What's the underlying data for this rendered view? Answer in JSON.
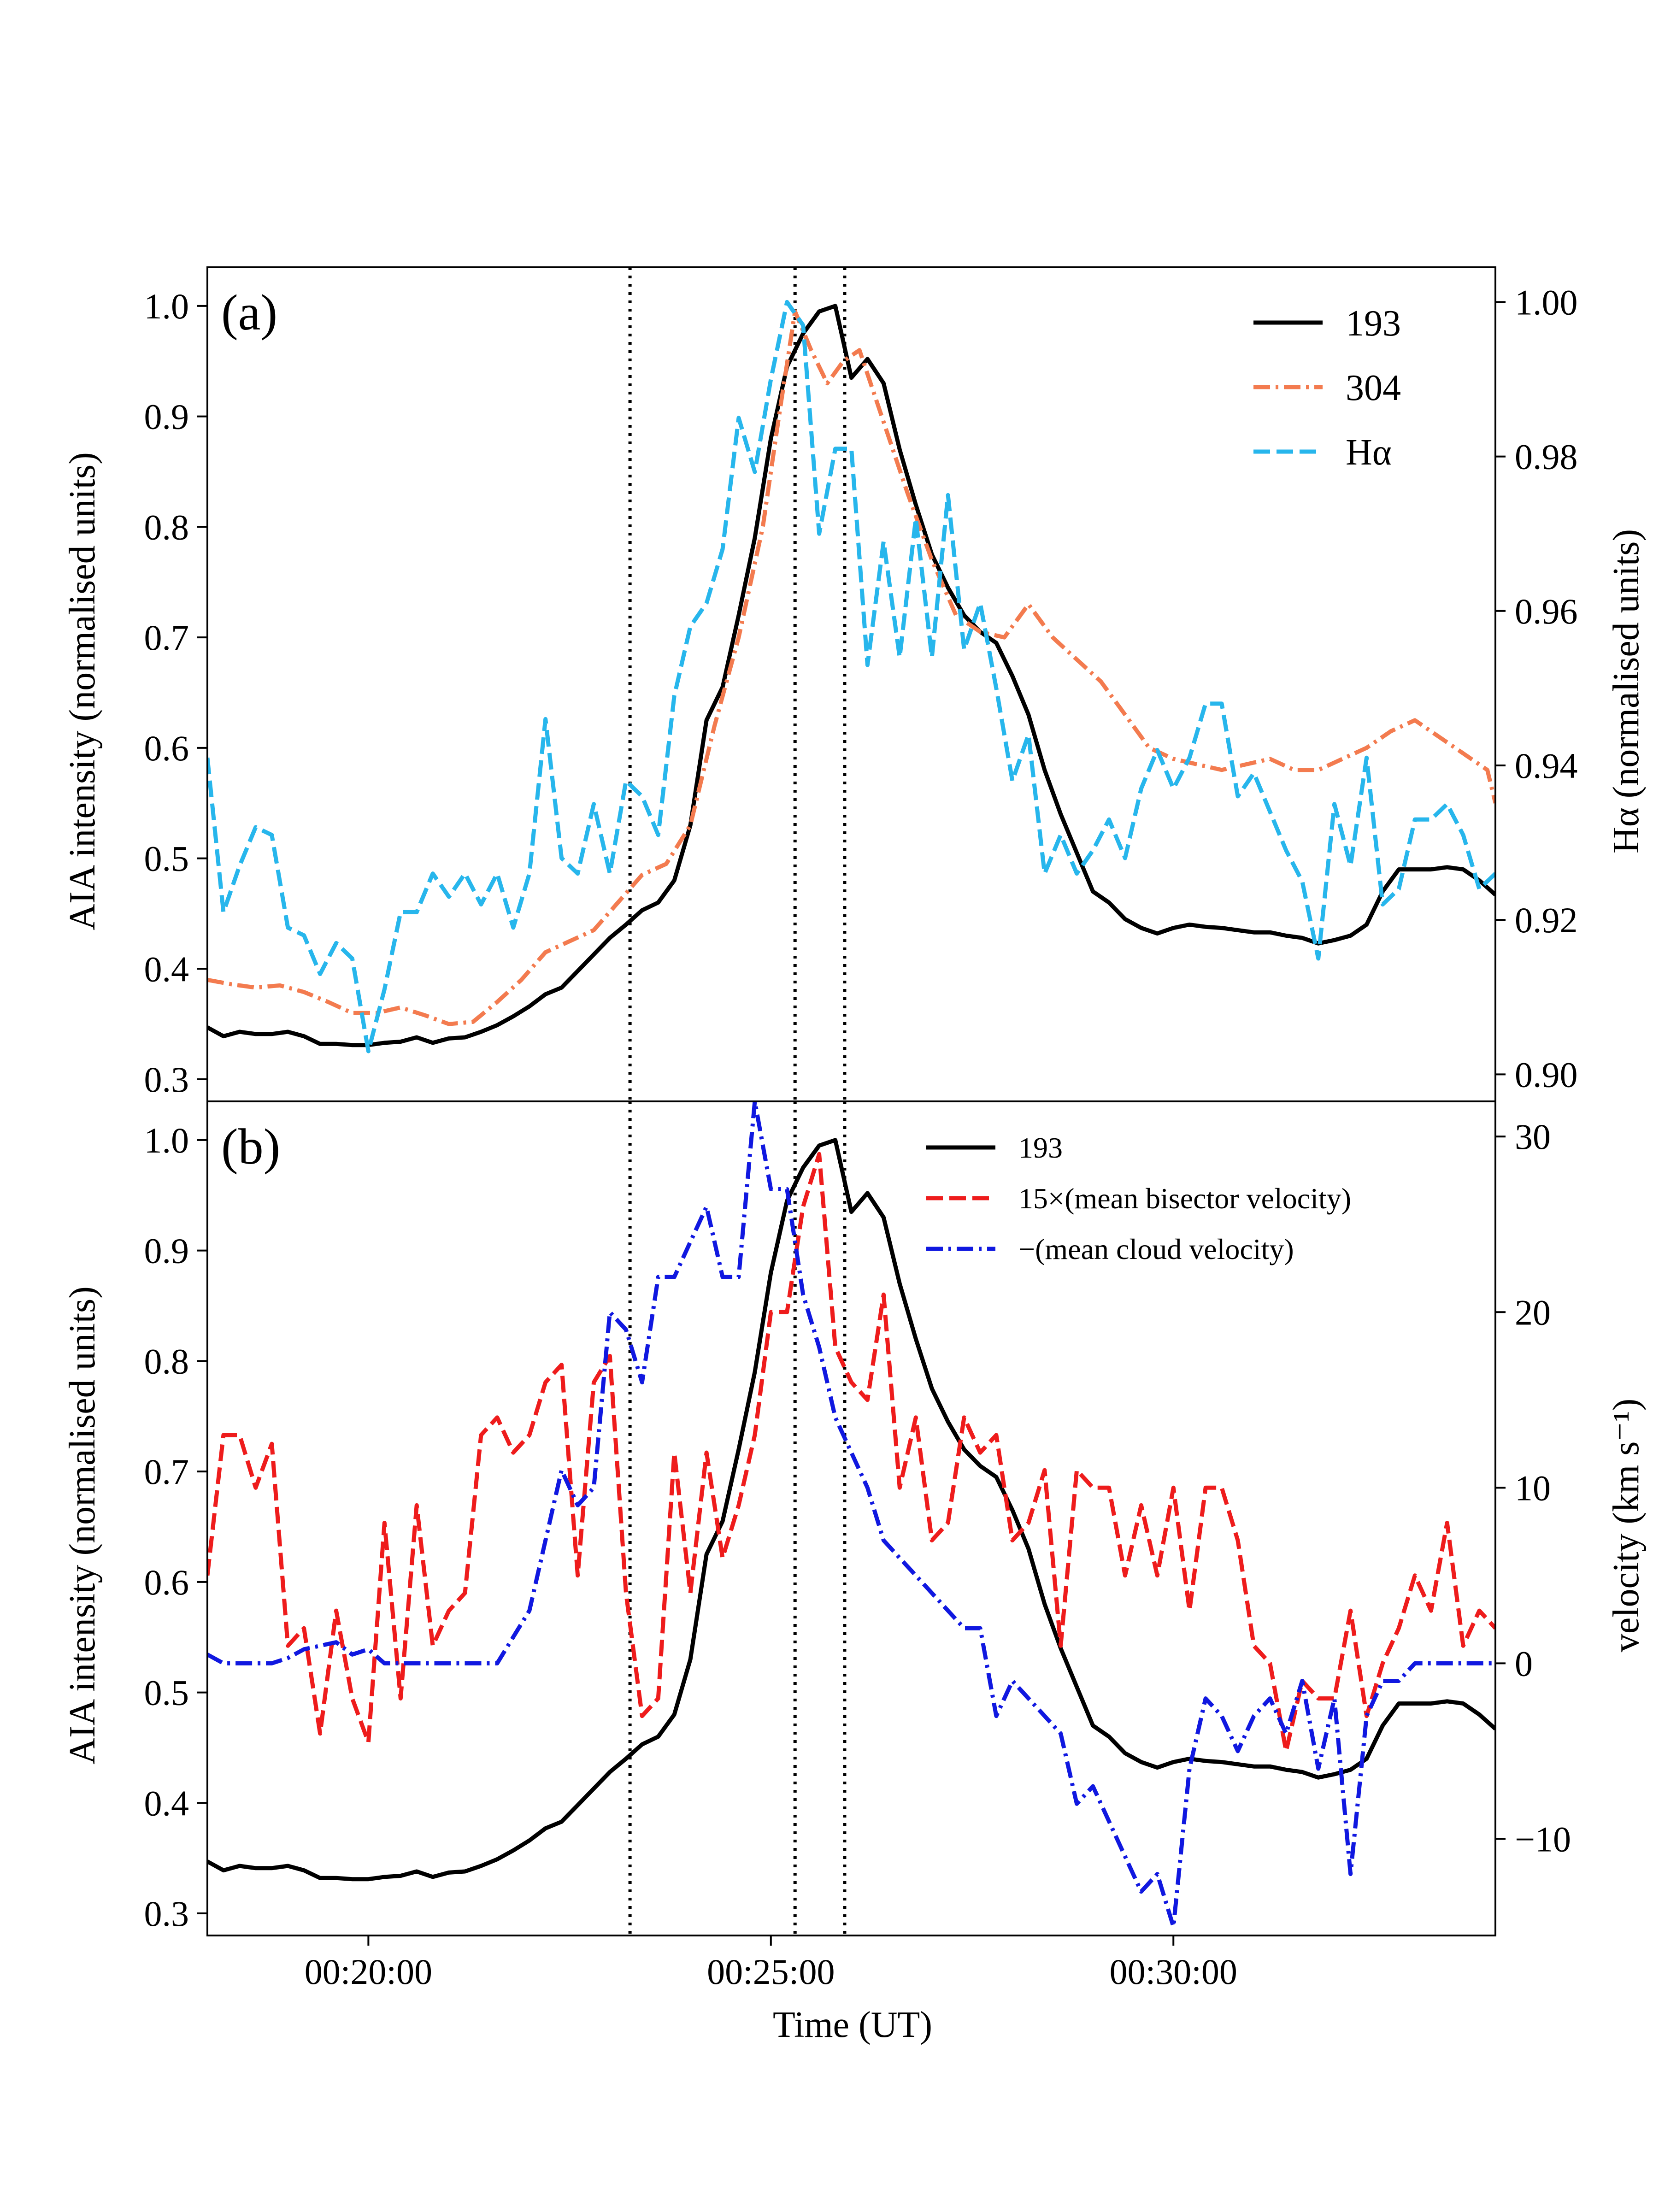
{
  "chart_data": [
    {
      "panel": "(a)",
      "type": "line",
      "xlabel": "",
      "ylabel": "AIA intensity (normalised units)",
      "y2label": "Hα (normalised units)",
      "xlim": [
        "00:18:00",
        "00:34:00"
      ],
      "ylim": [
        0.28,
        1.035
      ],
      "y2lim": [
        0.8965,
        1.0045
      ],
      "yticks": [
        "0.3",
        "0.4",
        "0.5",
        "0.6",
        "0.7",
        "0.8",
        "0.9",
        "1.0"
      ],
      "y2ticks": [
        "0.90",
        "0.92",
        "0.94",
        "0.96",
        "0.98",
        "1.00"
      ],
      "vlines": [
        "00:23:15",
        "00:25:18",
        "00:25:55"
      ],
      "legend": "top-right",
      "series": [
        {
          "name": "193",
          "axis": "left",
          "color": "#000000",
          "style": "solid",
          "x": [
            "00:18:00",
            "00:18:12",
            "00:18:24",
            "00:18:36",
            "00:18:48",
            "00:19:00",
            "00:19:12",
            "00:19:24",
            "00:19:36",
            "00:19:48",
            "00:20:00",
            "00:20:12",
            "00:20:24",
            "00:20:36",
            "00:20:48",
            "00:21:00",
            "00:21:12",
            "00:21:24",
            "00:21:36",
            "00:21:48",
            "00:22:00",
            "00:22:12",
            "00:22:24",
            "00:22:36",
            "00:22:48",
            "00:23:00",
            "00:23:12",
            "00:23:24",
            "00:23:36",
            "00:23:48",
            "00:24:00",
            "00:24:12",
            "00:24:24",
            "00:24:36",
            "00:24:48",
            "00:25:00",
            "00:25:12",
            "00:25:24",
            "00:25:36",
            "00:25:48",
            "00:26:00",
            "00:26:12",
            "00:26:24",
            "00:26:36",
            "00:26:48",
            "00:27:00",
            "00:27:12",
            "00:27:24",
            "00:27:36",
            "00:27:48",
            "00:28:00",
            "00:28:12",
            "00:28:24",
            "00:28:36",
            "00:28:48",
            "00:29:00",
            "00:29:12",
            "00:29:24",
            "00:29:36",
            "00:29:48",
            "00:30:00",
            "00:30:12",
            "00:30:24",
            "00:30:36",
            "00:30:48",
            "00:31:00",
            "00:31:12",
            "00:31:24",
            "00:31:36",
            "00:31:48",
            "00:32:00",
            "00:32:12",
            "00:32:24",
            "00:32:36",
            "00:32:48",
            "00:33:00",
            "00:33:12",
            "00:33:24",
            "00:33:36",
            "00:33:48",
            "00:34:00"
          ],
          "y": [
            0.347,
            0.339,
            0.343,
            0.341,
            0.341,
            0.343,
            0.339,
            0.332,
            0.332,
            0.331,
            0.331,
            0.333,
            0.334,
            0.338,
            0.333,
            0.337,
            0.338,
            0.343,
            0.349,
            0.357,
            0.366,
            0.377,
            0.383,
            0.398,
            0.413,
            0.428,
            0.44,
            0.453,
            0.46,
            0.48,
            0.53,
            0.625,
            0.655,
            0.72,
            0.79,
            0.88,
            0.945,
            0.975,
            0.995,
            1.0,
            0.935,
            0.952,
            0.93,
            0.87,
            0.82,
            0.775,
            0.745,
            0.72,
            0.705,
            0.695,
            0.665,
            0.63,
            0.58,
            0.54,
            0.505,
            0.47,
            0.46,
            0.445,
            0.437,
            0.432,
            0.437,
            0.44,
            0.438,
            0.437,
            0.435,
            0.433,
            0.433,
            0.43,
            0.428,
            0.423,
            0.426,
            0.43,
            0.44,
            0.47,
            0.49,
            0.49,
            0.49,
            0.492,
            0.49,
            0.48,
            0.467
          ]
        },
        {
          "name": "304",
          "axis": "left",
          "color": "#f37b4f",
          "style": "dashdot",
          "x": [
            "00:18:00",
            "00:18:18",
            "00:18:36",
            "00:18:54",
            "00:19:12",
            "00:19:30",
            "00:19:48",
            "00:20:06",
            "00:20:24",
            "00:20:42",
            "00:21:00",
            "00:21:18",
            "00:21:36",
            "00:21:54",
            "00:22:12",
            "00:22:30",
            "00:22:48",
            "00:23:06",
            "00:23:24",
            "00:23:42",
            "00:24:00",
            "00:24:18",
            "00:24:36",
            "00:24:54",
            "00:25:06",
            "00:25:18",
            "00:25:30",
            "00:25:42",
            "00:25:54",
            "00:26:06",
            "00:26:24",
            "00:26:42",
            "00:27:00",
            "00:27:18",
            "00:27:36",
            "00:27:54",
            "00:28:12",
            "00:28:30",
            "00:28:48",
            "00:29:06",
            "00:29:24",
            "00:29:42",
            "00:30:00",
            "00:30:18",
            "00:30:36",
            "00:30:54",
            "00:31:12",
            "00:31:30",
            "00:31:48",
            "00:32:06",
            "00:32:24",
            "00:32:42",
            "00:33:00",
            "00:33:18",
            "00:33:36",
            "00:33:54",
            "00:34:00"
          ],
          "y": [
            0.39,
            0.386,
            0.383,
            0.385,
            0.379,
            0.37,
            0.36,
            0.36,
            0.365,
            0.358,
            0.35,
            0.352,
            0.37,
            0.39,
            0.415,
            0.425,
            0.435,
            0.46,
            0.485,
            0.495,
            0.53,
            0.62,
            0.7,
            0.8,
            0.9,
            0.995,
            0.96,
            0.93,
            0.95,
            0.96,
            0.895,
            0.83,
            0.77,
            0.72,
            0.705,
            0.7,
            0.73,
            0.7,
            0.68,
            0.66,
            0.63,
            0.6,
            0.59,
            0.585,
            0.58,
            0.585,
            0.59,
            0.58,
            0.58,
            0.59,
            0.6,
            0.615,
            0.625,
            0.61,
            0.595,
            0.58,
            0.55
          ]
        },
        {
          "name": "Hα",
          "axis": "right",
          "color": "#27b6ec",
          "style": "dashed",
          "x": [
            "00:18:00",
            "00:18:12",
            "00:18:24",
            "00:18:36",
            "00:18:48",
            "00:19:00",
            "00:19:12",
            "00:19:24",
            "00:19:36",
            "00:19:48",
            "00:20:00",
            "00:20:12",
            "00:20:24",
            "00:20:36",
            "00:20:48",
            "00:21:00",
            "00:21:12",
            "00:21:24",
            "00:21:36",
            "00:21:48",
            "00:22:00",
            "00:22:12",
            "00:22:24",
            "00:22:36",
            "00:22:48",
            "00:23:00",
            "00:23:12",
            "00:23:24",
            "00:23:36",
            "00:23:48",
            "00:24:00",
            "00:24:12",
            "00:24:24",
            "00:24:36",
            "00:24:48",
            "00:25:00",
            "00:25:12",
            "00:25:24",
            "00:25:36",
            "00:25:48",
            "00:26:00",
            "00:26:12",
            "00:26:24",
            "00:26:36",
            "00:26:48",
            "00:27:00",
            "00:27:12",
            "00:27:24",
            "00:27:36",
            "00:27:48",
            "00:28:00",
            "00:28:12",
            "00:28:24",
            "00:28:36",
            "00:28:48",
            "00:29:00",
            "00:29:12",
            "00:29:24",
            "00:29:36",
            "00:29:48",
            "00:30:00",
            "00:30:12",
            "00:30:24",
            "00:30:36",
            "00:30:48",
            "00:31:00",
            "00:31:12",
            "00:31:24",
            "00:31:36",
            "00:31:48",
            "00:32:00",
            "00:32:12",
            "00:32:24",
            "00:32:36",
            "00:32:48",
            "00:33:00",
            "00:33:12",
            "00:33:24",
            "00:33:36",
            "00:33:48",
            "00:34:00"
          ],
          "y": [
            0.941,
            0.921,
            0.927,
            0.932,
            0.931,
            0.919,
            0.918,
            0.913,
            0.917,
            0.915,
            0.903,
            0.911,
            0.921,
            0.921,
            0.926,
            0.923,
            0.926,
            0.922,
            0.926,
            0.919,
            0.926,
            0.946,
            0.928,
            0.926,
            0.935,
            0.926,
            0.938,
            0.936,
            0.931,
            0.949,
            0.958,
            0.961,
            0.968,
            0.985,
            0.978,
            0.99,
            1.0,
            0.997,
            0.97,
            0.981,
            0.981,
            0.953,
            0.969,
            0.954,
            0.972,
            0.954,
            0.975,
            0.955,
            0.961,
            0.95,
            0.938,
            0.944,
            0.926,
            0.931,
            0.926,
            0.929,
            0.933,
            0.928,
            0.937,
            0.942,
            0.937,
            0.941,
            0.948,
            0.948,
            0.936,
            0.939,
            0.934,
            0.929,
            0.925,
            0.915,
            0.935,
            0.927,
            0.941,
            0.922,
            0.924,
            0.933,
            0.933,
            0.935,
            0.931,
            0.924,
            0.926
          ]
        }
      ]
    },
    {
      "panel": "(b)",
      "type": "line",
      "xlabel": "Time (UT)",
      "ylabel": "AIA intensity (normalised units)",
      "y2label": "velocity (km s⁻¹)",
      "xlim": [
        "00:18:00",
        "00:34:00"
      ],
      "xticks": [
        "00:20:00",
        "00:25:00",
        "00:30:00"
      ],
      "ylim": [
        0.28,
        1.035
      ],
      "y2lim": [
        -15.5,
        32
      ],
      "yticks": [
        "0.3",
        "0.4",
        "0.5",
        "0.6",
        "0.7",
        "0.8",
        "0.9",
        "1.0"
      ],
      "y2ticks": [
        "−10",
        "0",
        "10",
        "20",
        "30"
      ],
      "vlines": [
        "00:23:15",
        "00:25:18",
        "00:25:55"
      ],
      "legend": "top-right",
      "series": [
        {
          "name": "193",
          "axis": "left",
          "color": "#000000",
          "style": "solid",
          "same_as": "panel (a) 193"
        },
        {
          "name": "15×(mean bisector velocity)",
          "axis": "right",
          "color": "#ee1c1c",
          "style": "dashed",
          "x": [
            "00:18:00",
            "00:18:12",
            "00:18:24",
            "00:18:36",
            "00:18:48",
            "00:19:00",
            "00:19:12",
            "00:19:24",
            "00:19:36",
            "00:19:48",
            "00:20:00",
            "00:20:12",
            "00:20:24",
            "00:20:36",
            "00:20:48",
            "00:21:00",
            "00:21:12",
            "00:21:24",
            "00:21:36",
            "00:21:48",
            "00:22:00",
            "00:22:12",
            "00:22:24",
            "00:22:36",
            "00:22:48",
            "00:23:00",
            "00:23:12",
            "00:23:24",
            "00:23:36",
            "00:23:48",
            "00:24:00",
            "00:24:12",
            "00:24:24",
            "00:24:36",
            "00:24:48",
            "00:25:00",
            "00:25:12",
            "00:25:24",
            "00:25:36",
            "00:25:48",
            "00:26:00",
            "00:26:12",
            "00:26:24",
            "00:26:36",
            "00:26:48",
            "00:27:00",
            "00:27:12",
            "00:27:24",
            "00:27:36",
            "00:27:48",
            "00:28:00",
            "00:28:12",
            "00:28:24",
            "00:28:36",
            "00:28:48",
            "00:29:00",
            "00:29:12",
            "00:29:24",
            "00:29:36",
            "00:29:48",
            "00:30:00",
            "00:30:12",
            "00:30:24",
            "00:30:36",
            "00:30:48",
            "00:31:00",
            "00:31:12",
            "00:31:24",
            "00:31:36",
            "00:31:48",
            "00:32:00",
            "00:32:12",
            "00:32:24",
            "00:32:36",
            "00:32:48",
            "00:33:00",
            "00:33:12",
            "00:33:24",
            "00:33:36",
            "00:33:48",
            "00:34:00"
          ],
          "y": [
            5,
            13,
            13,
            10,
            12.5,
            1,
            2,
            -4,
            3,
            -2,
            -4.5,
            8,
            -2,
            9,
            1,
            3,
            4,
            13,
            14,
            12,
            13,
            16,
            17,
            5,
            16,
            17.5,
            4,
            -3,
            -2,
            12,
            4,
            12,
            6,
            9,
            13,
            20,
            20,
            26,
            29,
            18,
            16,
            15,
            21,
            10,
            14,
            7,
            8,
            14,
            12,
            13,
            7,
            8,
            11,
            1,
            11,
            10,
            10,
            5,
            9,
            5,
            10,
            3,
            10,
            10,
            7,
            1,
            0,
            -5,
            -1,
            -2,
            -2,
            3,
            -3,
            0,
            2,
            5,
            3,
            8,
            1,
            3,
            2
          ]
        },
        {
          "name": "−(mean cloud velocity)",
          "axis": "right",
          "color": "#1018e0",
          "style": "dashdot",
          "x": [
            "00:18:00",
            "00:18:12",
            "00:18:24",
            "00:18:36",
            "00:18:48",
            "00:19:00",
            "00:19:12",
            "00:19:24",
            "00:19:36",
            "00:19:48",
            "00:20:00",
            "00:20:12",
            "00:20:24",
            "00:20:36",
            "00:20:48",
            "00:21:00",
            "00:21:12",
            "00:21:24",
            "00:21:36",
            "00:21:48",
            "00:22:00",
            "00:22:12",
            "00:22:24",
            "00:22:36",
            "00:22:48",
            "00:23:00",
            "00:23:12",
            "00:23:24",
            "00:23:36",
            "00:23:48",
            "00:24:00",
            "00:24:12",
            "00:24:24",
            "00:24:36",
            "00:24:48",
            "00:25:00",
            "00:25:12",
            "00:25:24",
            "00:25:36",
            "00:25:48",
            "00:26:00",
            "00:26:12",
            "00:26:24",
            "00:26:36",
            "00:26:48",
            "00:27:00",
            "00:27:12",
            "00:27:24",
            "00:27:36",
            "00:27:48",
            "00:28:00",
            "00:28:12",
            "00:28:24",
            "00:28:36",
            "00:28:48",
            "00:29:00",
            "00:29:12",
            "00:29:24",
            "00:29:36",
            "00:29:48",
            "00:30:00",
            "00:30:12",
            "00:30:24",
            "00:30:36",
            "00:30:48",
            "00:31:00",
            "00:31:12",
            "00:31:24",
            "00:31:36",
            "00:31:48",
            "00:32:00",
            "00:32:12",
            "00:32:24",
            "00:32:36",
            "00:32:48",
            "00:33:00",
            "00:33:12",
            "00:33:24",
            "00:33:36",
            "00:33:48",
            "00:34:00"
          ],
          "y": [
            0.5,
            0,
            0,
            0,
            0,
            0.3,
            0.8,
            1,
            1.2,
            0.5,
            0.8,
            0,
            0,
            0,
            0,
            0,
            0,
            0,
            0,
            1.5,
            3,
            7,
            11,
            9,
            10,
            20,
            19,
            16,
            22,
            22,
            24,
            26,
            22,
            22,
            32,
            27,
            27,
            21,
            18,
            14,
            12,
            10,
            7,
            6,
            5,
            4,
            3,
            2,
            2,
            -3,
            -1,
            -2,
            -3,
            -4,
            -8,
            -7,
            -9,
            -11,
            -13,
            -12,
            -15,
            -6,
            -2,
            -3,
            -5,
            -3,
            -2,
            -4,
            -1,
            -6,
            -2,
            -12,
            -3,
            -1,
            -1,
            0,
            0,
            0,
            0,
            0,
            0
          ]
        }
      ]
    }
  ]
}
